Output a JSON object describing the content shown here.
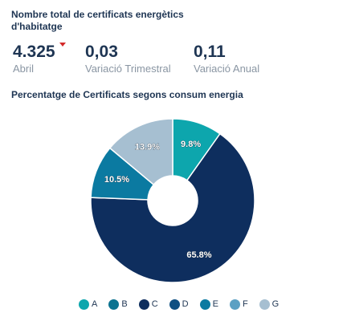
{
  "header": {
    "title": "Nombre total de certificats energètics d'habitatge"
  },
  "kpis": [
    {
      "value": "4.325",
      "label": "Abril",
      "trend": "down",
      "trend_color": "#d42a2a"
    },
    {
      "value": "0,03",
      "label": "Variació Trimestral"
    },
    {
      "value": "0,11",
      "label": "Variació Anual"
    }
  ],
  "chart_data": {
    "type": "pie",
    "title": "Percentatge de Certificats segons consum energia",
    "donut": true,
    "categories": [
      "A",
      "B",
      "C",
      "D",
      "E",
      "F",
      "G"
    ],
    "values": [
      9.8,
      0,
      65.8,
      0,
      10.5,
      0,
      13.9
    ],
    "data_labels": [
      "9.8%",
      "",
      "65.8%",
      "",
      "10.5%",
      "",
      "13.9%"
    ],
    "colors": [
      "#0da6ad",
      "#0c7390",
      "#0e2e5e",
      "#0e4f82",
      "#0b7aa1",
      "#5ba0c3",
      "#a6bfd1"
    ],
    "legend": "bottom",
    "start_angle_deg": 0
  }
}
